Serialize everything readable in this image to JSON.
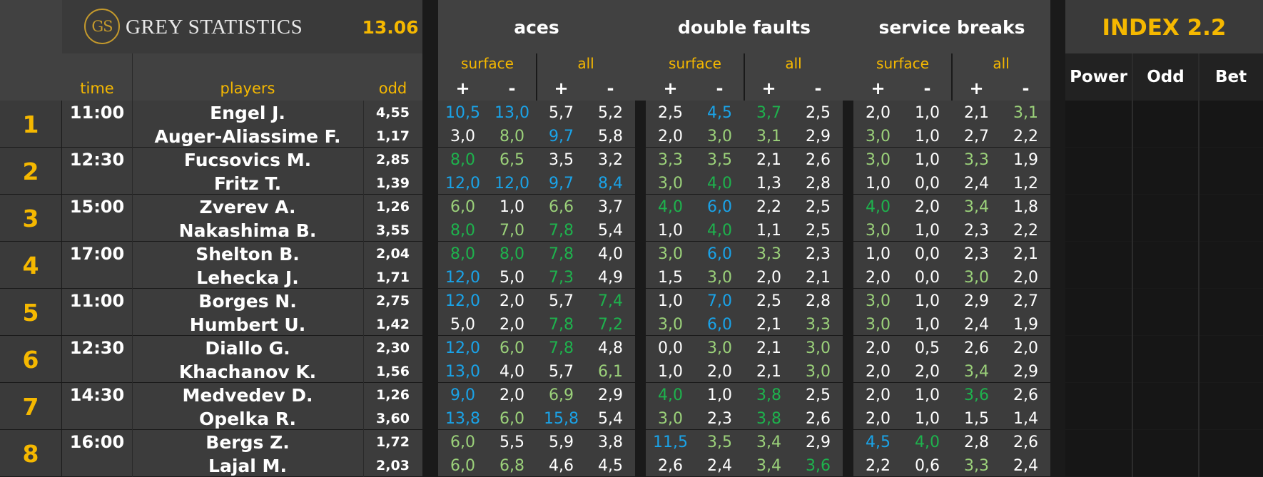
{
  "header": {
    "logo_initials": "GS",
    "brand": "GREY STATISTICS",
    "date": "13.06",
    "index_title": "INDEX 2.2",
    "groups": [
      "aces",
      "double faults",
      "service breaks"
    ],
    "sub_surface": "surface",
    "sub_all": "all",
    "plus": "+",
    "minus": "-",
    "col_time": "time",
    "col_players": "players",
    "col_odd": "odd",
    "col_power": "Power",
    "col_odd2": "Odd",
    "col_bet": "Bet"
  },
  "colors": {
    "white": "#ffffff",
    "blue": "#1aa3e8",
    "green": "#1eb24d",
    "lgreen": "#9bd17a",
    "gold": "#f5b800"
  },
  "matches": [
    {
      "num": "1",
      "time": "11:00",
      "players": [
        {
          "name": "Engel J.",
          "odd": "4,55",
          "stats": [
            [
              "10,5",
              "blue"
            ],
            [
              "13,0",
              "blue"
            ],
            [
              "5,7",
              "white"
            ],
            [
              "5,2",
              "white"
            ],
            [
              "2,5",
              "white"
            ],
            [
              "4,5",
              "blue"
            ],
            [
              "3,7",
              "green"
            ],
            [
              "2,5",
              "white"
            ],
            [
              "2,0",
              "white"
            ],
            [
              "1,0",
              "white"
            ],
            [
              "2,1",
              "white"
            ],
            [
              "3,1",
              "lgreen"
            ]
          ]
        },
        {
          "name": "Auger-Aliassime F.",
          "odd": "1,17",
          "stats": [
            [
              "3,0",
              "white"
            ],
            [
              "8,0",
              "lgreen"
            ],
            [
              "9,7",
              "blue"
            ],
            [
              "5,8",
              "white"
            ],
            [
              "2,0",
              "white"
            ],
            [
              "3,0",
              "lgreen"
            ],
            [
              "3,1",
              "lgreen"
            ],
            [
              "2,9",
              "white"
            ],
            [
              "3,0",
              "lgreen"
            ],
            [
              "1,0",
              "white"
            ],
            [
              "2,7",
              "white"
            ],
            [
              "2,2",
              "white"
            ]
          ]
        }
      ]
    },
    {
      "num": "2",
      "time": "12:30",
      "players": [
        {
          "name": "Fucsovics M.",
          "odd": "2,85",
          "stats": [
            [
              "8,0",
              "green"
            ],
            [
              "6,5",
              "lgreen"
            ],
            [
              "3,5",
              "white"
            ],
            [
              "3,2",
              "white"
            ],
            [
              "3,3",
              "lgreen"
            ],
            [
              "3,5",
              "lgreen"
            ],
            [
              "2,1",
              "white"
            ],
            [
              "2,6",
              "white"
            ],
            [
              "3,0",
              "lgreen"
            ],
            [
              "1,0",
              "white"
            ],
            [
              "3,3",
              "lgreen"
            ],
            [
              "1,9",
              "white"
            ]
          ]
        },
        {
          "name": "Fritz T.",
          "odd": "1,39",
          "stats": [
            [
              "12,0",
              "blue"
            ],
            [
              "12,0",
              "blue"
            ],
            [
              "9,7",
              "blue"
            ],
            [
              "8,4",
              "blue"
            ],
            [
              "3,0",
              "lgreen"
            ],
            [
              "4,0",
              "green"
            ],
            [
              "1,3",
              "white"
            ],
            [
              "2,8",
              "white"
            ],
            [
              "1,0",
              "white"
            ],
            [
              "0,0",
              "white"
            ],
            [
              "2,4",
              "white"
            ],
            [
              "1,2",
              "white"
            ]
          ]
        }
      ]
    },
    {
      "num": "3",
      "time": "15:00",
      "players": [
        {
          "name": "Zverev A.",
          "odd": "1,26",
          "stats": [
            [
              "6,0",
              "lgreen"
            ],
            [
              "1,0",
              "white"
            ],
            [
              "6,6",
              "lgreen"
            ],
            [
              "3,7",
              "white"
            ],
            [
              "4,0",
              "green"
            ],
            [
              "6,0",
              "blue"
            ],
            [
              "2,2",
              "white"
            ],
            [
              "2,5",
              "white"
            ],
            [
              "4,0",
              "green"
            ],
            [
              "2,0",
              "white"
            ],
            [
              "3,4",
              "lgreen"
            ],
            [
              "1,8",
              "white"
            ]
          ]
        },
        {
          "name": "Nakashima B.",
          "odd": "3,55",
          "stats": [
            [
              "8,0",
              "green"
            ],
            [
              "7,0",
              "lgreen"
            ],
            [
              "7,8",
              "green"
            ],
            [
              "5,4",
              "white"
            ],
            [
              "1,0",
              "white"
            ],
            [
              "4,0",
              "green"
            ],
            [
              "1,1",
              "white"
            ],
            [
              "2,5",
              "white"
            ],
            [
              "3,0",
              "lgreen"
            ],
            [
              "1,0",
              "white"
            ],
            [
              "2,3",
              "white"
            ],
            [
              "2,2",
              "white"
            ]
          ]
        }
      ]
    },
    {
      "num": "4",
      "time": "17:00",
      "players": [
        {
          "name": "Shelton B.",
          "odd": "2,04",
          "stats": [
            [
              "8,0",
              "green"
            ],
            [
              "8,0",
              "green"
            ],
            [
              "7,8",
              "green"
            ],
            [
              "4,0",
              "white"
            ],
            [
              "3,0",
              "lgreen"
            ],
            [
              "6,0",
              "blue"
            ],
            [
              "3,3",
              "lgreen"
            ],
            [
              "2,3",
              "white"
            ],
            [
              "1,0",
              "white"
            ],
            [
              "0,0",
              "white"
            ],
            [
              "2,3",
              "white"
            ],
            [
              "2,1",
              "white"
            ]
          ]
        },
        {
          "name": "Lehecka J.",
          "odd": "1,71",
          "stats": [
            [
              "12,0",
              "blue"
            ],
            [
              "5,0",
              "white"
            ],
            [
              "7,3",
              "green"
            ],
            [
              "4,9",
              "white"
            ],
            [
              "1,5",
              "white"
            ],
            [
              "3,0",
              "lgreen"
            ],
            [
              "2,0",
              "white"
            ],
            [
              "2,1",
              "white"
            ],
            [
              "2,0",
              "white"
            ],
            [
              "0,0",
              "white"
            ],
            [
              "3,0",
              "lgreen"
            ],
            [
              "2,0",
              "white"
            ]
          ]
        }
      ]
    },
    {
      "num": "5",
      "time": "11:00",
      "players": [
        {
          "name": "Borges N.",
          "odd": "2,75",
          "stats": [
            [
              "12,0",
              "blue"
            ],
            [
              "2,0",
              "white"
            ],
            [
              "5,7",
              "white"
            ],
            [
              "7,4",
              "green"
            ],
            [
              "1,0",
              "white"
            ],
            [
              "7,0",
              "blue"
            ],
            [
              "2,5",
              "white"
            ],
            [
              "2,8",
              "white"
            ],
            [
              "3,0",
              "lgreen"
            ],
            [
              "1,0",
              "white"
            ],
            [
              "2,9",
              "white"
            ],
            [
              "2,7",
              "white"
            ]
          ]
        },
        {
          "name": "Humbert U.",
          "odd": "1,42",
          "stats": [
            [
              "5,0",
              "white"
            ],
            [
              "2,0",
              "white"
            ],
            [
              "7,8",
              "green"
            ],
            [
              "7,2",
              "green"
            ],
            [
              "3,0",
              "lgreen"
            ],
            [
              "6,0",
              "blue"
            ],
            [
              "2,1",
              "white"
            ],
            [
              "3,3",
              "lgreen"
            ],
            [
              "3,0",
              "lgreen"
            ],
            [
              "1,0",
              "white"
            ],
            [
              "2,4",
              "white"
            ],
            [
              "1,9",
              "white"
            ]
          ]
        }
      ]
    },
    {
      "num": "6",
      "time": "12:30",
      "players": [
        {
          "name": "Diallo G.",
          "odd": "2,30",
          "stats": [
            [
              "12,0",
              "blue"
            ],
            [
              "6,0",
              "lgreen"
            ],
            [
              "7,8",
              "green"
            ],
            [
              "4,8",
              "white"
            ],
            [
              "0,0",
              "white"
            ],
            [
              "3,0",
              "lgreen"
            ],
            [
              "2,1",
              "white"
            ],
            [
              "3,0",
              "lgreen"
            ],
            [
              "2,0",
              "white"
            ],
            [
              "0,5",
              "white"
            ],
            [
              "2,6",
              "white"
            ],
            [
              "2,0",
              "white"
            ]
          ]
        },
        {
          "name": "Khachanov K.",
          "odd": "1,56",
          "stats": [
            [
              "13,0",
              "blue"
            ],
            [
              "4,0",
              "white"
            ],
            [
              "5,7",
              "white"
            ],
            [
              "6,1",
              "lgreen"
            ],
            [
              "1,0",
              "white"
            ],
            [
              "2,0",
              "white"
            ],
            [
              "2,1",
              "white"
            ],
            [
              "3,0",
              "lgreen"
            ],
            [
              "2,0",
              "white"
            ],
            [
              "2,0",
              "white"
            ],
            [
              "3,4",
              "lgreen"
            ],
            [
              "2,9",
              "white"
            ]
          ]
        }
      ]
    },
    {
      "num": "7",
      "time": "14:30",
      "players": [
        {
          "name": "Medvedev D.",
          "odd": "1,26",
          "stats": [
            [
              "9,0",
              "blue"
            ],
            [
              "2,0",
              "white"
            ],
            [
              "6,9",
              "lgreen"
            ],
            [
              "2,9",
              "white"
            ],
            [
              "4,0",
              "green"
            ],
            [
              "1,0",
              "white"
            ],
            [
              "3,8",
              "green"
            ],
            [
              "2,5",
              "white"
            ],
            [
              "2,0",
              "white"
            ],
            [
              "1,0",
              "white"
            ],
            [
              "3,6",
              "green"
            ],
            [
              "2,6",
              "white"
            ]
          ]
        },
        {
          "name": "Opelka R.",
          "odd": "3,60",
          "stats": [
            [
              "13,8",
              "blue"
            ],
            [
              "6,0",
              "lgreen"
            ],
            [
              "15,8",
              "blue"
            ],
            [
              "5,4",
              "white"
            ],
            [
              "3,0",
              "lgreen"
            ],
            [
              "2,3",
              "white"
            ],
            [
              "3,8",
              "green"
            ],
            [
              "2,6",
              "white"
            ],
            [
              "2,0",
              "white"
            ],
            [
              "1,0",
              "white"
            ],
            [
              "1,5",
              "white"
            ],
            [
              "1,4",
              "white"
            ]
          ]
        }
      ]
    },
    {
      "num": "8",
      "time": "16:00",
      "players": [
        {
          "name": "Bergs Z.",
          "odd": "1,72",
          "stats": [
            [
              "6,0",
              "lgreen"
            ],
            [
              "5,5",
              "white"
            ],
            [
              "5,9",
              "white"
            ],
            [
              "3,8",
              "white"
            ],
            [
              "11,5",
              "blue"
            ],
            [
              "3,5",
              "lgreen"
            ],
            [
              "3,4",
              "lgreen"
            ],
            [
              "2,9",
              "white"
            ],
            [
              "4,5",
              "blue"
            ],
            [
              "4,0",
              "green"
            ],
            [
              "2,8",
              "white"
            ],
            [
              "2,6",
              "white"
            ]
          ]
        },
        {
          "name": "Lajal M.",
          "odd": "2,03",
          "stats": [
            [
              "6,0",
              "lgreen"
            ],
            [
              "6,8",
              "lgreen"
            ],
            [
              "4,6",
              "white"
            ],
            [
              "4,5",
              "white"
            ],
            [
              "2,6",
              "white"
            ],
            [
              "2,4",
              "white"
            ],
            [
              "3,4",
              "lgreen"
            ],
            [
              "3,6",
              "green"
            ],
            [
              "2,2",
              "white"
            ],
            [
              "0,6",
              "white"
            ],
            [
              "3,3",
              "lgreen"
            ],
            [
              "2,4",
              "white"
            ]
          ]
        }
      ]
    }
  ]
}
